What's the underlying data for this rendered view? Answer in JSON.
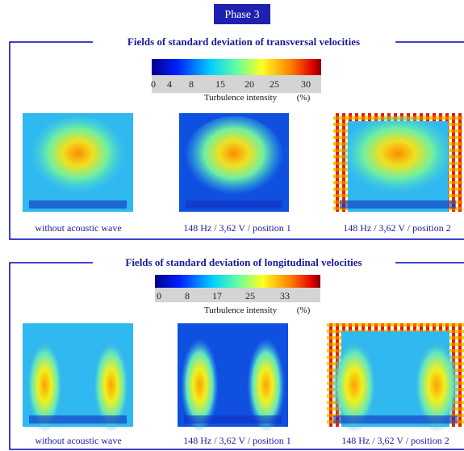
{
  "header": {
    "title": "Phase 3"
  },
  "sections": [
    {
      "title": "Fields of standard deviation of transversal velocities",
      "colorbar": {
        "ticks": [
          "0",
          "4",
          "8",
          "15",
          "20",
          "25",
          "30"
        ],
        "label": "Turbulence intensity",
        "unit": "(%)"
      },
      "panels": [
        {
          "caption": "without acoustic wave"
        },
        {
          "caption": "148 Hz / 3,62 V / position 1"
        },
        {
          "caption": "148 Hz / 3,62 V / position 2"
        }
      ]
    },
    {
      "title": "Fields of standard deviation of longitudinal velocities",
      "colorbar": {
        "ticks": [
          "0",
          "8",
          "17",
          "25",
          "33"
        ],
        "label": "Turbulence intensity",
        "unit": "(%)"
      },
      "panels": [
        {
          "caption": "without acoustic wave"
        },
        {
          "caption": "148 Hz / 3,62 V / position 1"
        },
        {
          "caption": "148 Hz / 3,62 V / position 2"
        }
      ]
    }
  ]
}
